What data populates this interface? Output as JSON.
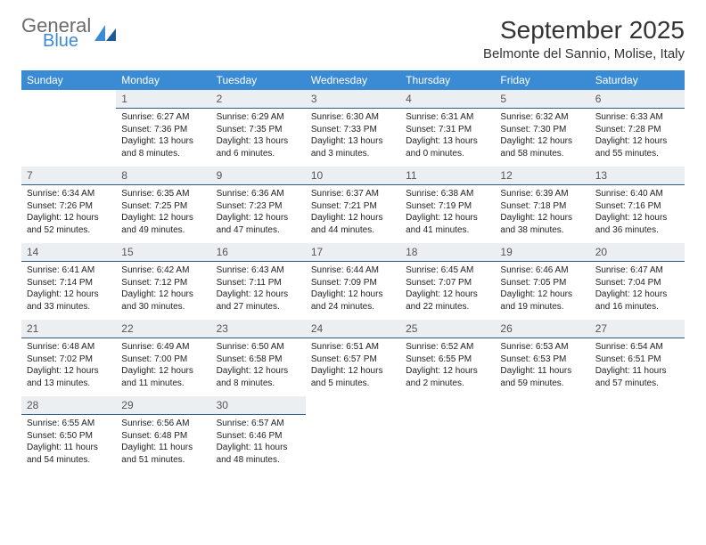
{
  "logo": {
    "general": "General",
    "blue": "Blue"
  },
  "title": "September 2025",
  "location": "Belmonte del Sannio, Molise, Italy",
  "columns": [
    "Sunday",
    "Monday",
    "Tuesday",
    "Wednesday",
    "Thursday",
    "Friday",
    "Saturday"
  ],
  "colors": {
    "header_bg": "#3b8bd4",
    "daynum_bg": "#eceff1",
    "daynum_border": "#2f5b87",
    "logo_gray": "#6b6b6b",
    "logo_blue": "#3b8bd4"
  },
  "weeks": [
    [
      null,
      {
        "n": "1",
        "sr": "Sunrise: 6:27 AM",
        "ss": "Sunset: 7:36 PM",
        "dl": "Daylight: 13 hours and 8 minutes."
      },
      {
        "n": "2",
        "sr": "Sunrise: 6:29 AM",
        "ss": "Sunset: 7:35 PM",
        "dl": "Daylight: 13 hours and 6 minutes."
      },
      {
        "n": "3",
        "sr": "Sunrise: 6:30 AM",
        "ss": "Sunset: 7:33 PM",
        "dl": "Daylight: 13 hours and 3 minutes."
      },
      {
        "n": "4",
        "sr": "Sunrise: 6:31 AM",
        "ss": "Sunset: 7:31 PM",
        "dl": "Daylight: 13 hours and 0 minutes."
      },
      {
        "n": "5",
        "sr": "Sunrise: 6:32 AM",
        "ss": "Sunset: 7:30 PM",
        "dl": "Daylight: 12 hours and 58 minutes."
      },
      {
        "n": "6",
        "sr": "Sunrise: 6:33 AM",
        "ss": "Sunset: 7:28 PM",
        "dl": "Daylight: 12 hours and 55 minutes."
      }
    ],
    [
      {
        "n": "7",
        "sr": "Sunrise: 6:34 AM",
        "ss": "Sunset: 7:26 PM",
        "dl": "Daylight: 12 hours and 52 minutes."
      },
      {
        "n": "8",
        "sr": "Sunrise: 6:35 AM",
        "ss": "Sunset: 7:25 PM",
        "dl": "Daylight: 12 hours and 49 minutes."
      },
      {
        "n": "9",
        "sr": "Sunrise: 6:36 AM",
        "ss": "Sunset: 7:23 PM",
        "dl": "Daylight: 12 hours and 47 minutes."
      },
      {
        "n": "10",
        "sr": "Sunrise: 6:37 AM",
        "ss": "Sunset: 7:21 PM",
        "dl": "Daylight: 12 hours and 44 minutes."
      },
      {
        "n": "11",
        "sr": "Sunrise: 6:38 AM",
        "ss": "Sunset: 7:19 PM",
        "dl": "Daylight: 12 hours and 41 minutes."
      },
      {
        "n": "12",
        "sr": "Sunrise: 6:39 AM",
        "ss": "Sunset: 7:18 PM",
        "dl": "Daylight: 12 hours and 38 minutes."
      },
      {
        "n": "13",
        "sr": "Sunrise: 6:40 AM",
        "ss": "Sunset: 7:16 PM",
        "dl": "Daylight: 12 hours and 36 minutes."
      }
    ],
    [
      {
        "n": "14",
        "sr": "Sunrise: 6:41 AM",
        "ss": "Sunset: 7:14 PM",
        "dl": "Daylight: 12 hours and 33 minutes."
      },
      {
        "n": "15",
        "sr": "Sunrise: 6:42 AM",
        "ss": "Sunset: 7:12 PM",
        "dl": "Daylight: 12 hours and 30 minutes."
      },
      {
        "n": "16",
        "sr": "Sunrise: 6:43 AM",
        "ss": "Sunset: 7:11 PM",
        "dl": "Daylight: 12 hours and 27 minutes."
      },
      {
        "n": "17",
        "sr": "Sunrise: 6:44 AM",
        "ss": "Sunset: 7:09 PM",
        "dl": "Daylight: 12 hours and 24 minutes."
      },
      {
        "n": "18",
        "sr": "Sunrise: 6:45 AM",
        "ss": "Sunset: 7:07 PM",
        "dl": "Daylight: 12 hours and 22 minutes."
      },
      {
        "n": "19",
        "sr": "Sunrise: 6:46 AM",
        "ss": "Sunset: 7:05 PM",
        "dl": "Daylight: 12 hours and 19 minutes."
      },
      {
        "n": "20",
        "sr": "Sunrise: 6:47 AM",
        "ss": "Sunset: 7:04 PM",
        "dl": "Daylight: 12 hours and 16 minutes."
      }
    ],
    [
      {
        "n": "21",
        "sr": "Sunrise: 6:48 AM",
        "ss": "Sunset: 7:02 PM",
        "dl": "Daylight: 12 hours and 13 minutes."
      },
      {
        "n": "22",
        "sr": "Sunrise: 6:49 AM",
        "ss": "Sunset: 7:00 PM",
        "dl": "Daylight: 12 hours and 11 minutes."
      },
      {
        "n": "23",
        "sr": "Sunrise: 6:50 AM",
        "ss": "Sunset: 6:58 PM",
        "dl": "Daylight: 12 hours and 8 minutes."
      },
      {
        "n": "24",
        "sr": "Sunrise: 6:51 AM",
        "ss": "Sunset: 6:57 PM",
        "dl": "Daylight: 12 hours and 5 minutes."
      },
      {
        "n": "25",
        "sr": "Sunrise: 6:52 AM",
        "ss": "Sunset: 6:55 PM",
        "dl": "Daylight: 12 hours and 2 minutes."
      },
      {
        "n": "26",
        "sr": "Sunrise: 6:53 AM",
        "ss": "Sunset: 6:53 PM",
        "dl": "Daylight: 11 hours and 59 minutes."
      },
      {
        "n": "27",
        "sr": "Sunrise: 6:54 AM",
        "ss": "Sunset: 6:51 PM",
        "dl": "Daylight: 11 hours and 57 minutes."
      }
    ],
    [
      {
        "n": "28",
        "sr": "Sunrise: 6:55 AM",
        "ss": "Sunset: 6:50 PM",
        "dl": "Daylight: 11 hours and 54 minutes."
      },
      {
        "n": "29",
        "sr": "Sunrise: 6:56 AM",
        "ss": "Sunset: 6:48 PM",
        "dl": "Daylight: 11 hours and 51 minutes."
      },
      {
        "n": "30",
        "sr": "Sunrise: 6:57 AM",
        "ss": "Sunset: 6:46 PM",
        "dl": "Daylight: 11 hours and 48 minutes."
      },
      null,
      null,
      null,
      null
    ]
  ]
}
